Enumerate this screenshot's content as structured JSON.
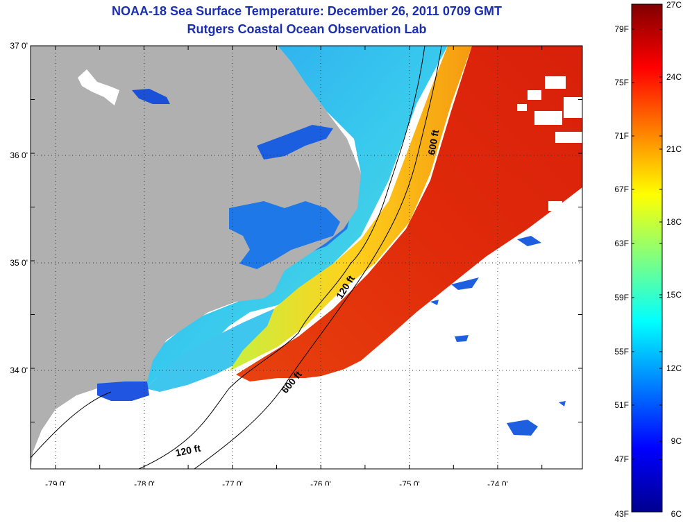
{
  "title": {
    "line1": "NOAA-18 Sea Surface Temperature:  December 26, 2011 0709 GMT",
    "line2": "Rutgers Coastal Ocean Observation Lab"
  },
  "map": {
    "lon_range": [
      -79.3,
      -73.0
    ],
    "lat_range": [
      33.1,
      37.0
    ],
    "lat_labels": [
      "37 0'",
      "36 0'",
      "35 0'",
      "34 0'"
    ],
    "lon_labels": [
      "-79 0'",
      "-78 0'",
      "-77 0'",
      "-76 0'",
      "-75 0'",
      "-74 0'"
    ],
    "contours": [
      {
        "label": "600 ft"
      },
      {
        "label": "120 ft"
      },
      {
        "label": "600 ft"
      },
      {
        "label": "120 ft"
      }
    ],
    "colors": {
      "land": "#b0b0b0",
      "cloud": "#ffffff",
      "warm": "#e02a0a",
      "mid": "#33d9ee",
      "cool": "#1e74e6"
    }
  },
  "colorbar": {
    "fahrenheit_labels": [
      "79F",
      "75F",
      "71F",
      "67F",
      "63F",
      "59F",
      "55F",
      "51F",
      "47F",
      "43F"
    ],
    "celsius_labels": [
      "27C",
      "24C",
      "21C",
      "18C",
      "15C",
      "12C",
      "9C",
      "6C"
    ]
  }
}
